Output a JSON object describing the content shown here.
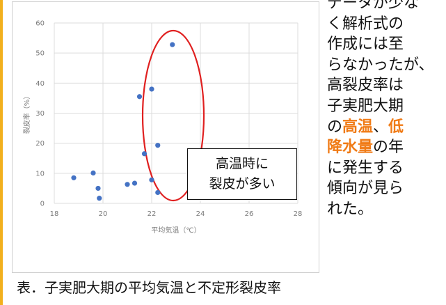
{
  "chart_data": {
    "type": "scatter",
    "xlabel": "平均気温（℃）",
    "ylabel": "裂皮率（%）",
    "xlim": [
      18,
      28
    ],
    "ylim": [
      0,
      60
    ],
    "xticks": [
      18,
      20,
      22,
      24,
      26,
      28
    ],
    "yticks": [
      0,
      10,
      20,
      30,
      40,
      50,
      60
    ],
    "grid": "both",
    "marker_color": "#4472c4",
    "points": [
      {
        "x": 18.8,
        "y": 8.5
      },
      {
        "x": 19.6,
        "y": 10.1
      },
      {
        "x": 19.8,
        "y": 5.0
      },
      {
        "x": 19.85,
        "y": 1.7
      },
      {
        "x": 21.0,
        "y": 6.3
      },
      {
        "x": 21.3,
        "y": 6.7
      },
      {
        "x": 21.5,
        "y": 35.5
      },
      {
        "x": 21.7,
        "y": 16.5
      },
      {
        "x": 22.0,
        "y": 38.0
      },
      {
        "x": 22.0,
        "y": 7.8
      },
      {
        "x": 22.25,
        "y": 19.3
      },
      {
        "x": 22.25,
        "y": 3.6
      },
      {
        "x": 22.85,
        "y": 52.8
      }
    ],
    "highlight_color": "#e02020"
  },
  "callout": {
    "line1": "高温時に",
    "line2": "裂皮が多い"
  },
  "side_text": {
    "line1": "データが少な",
    "line2": "く解析式の",
    "line3": "作成には至",
    "line4": "らなかったが、",
    "line5": "高裂皮率は",
    "line6": "子実肥大期",
    "line7_a": "の",
    "line7_b": "高温",
    "line7_c": "、",
    "line7_d": "低",
    "line8_a": "降水量",
    "line8_b": "の年",
    "line9": "に発生する",
    "line10": "傾向が見ら",
    "line11": "れた。"
  },
  "caption": "表．子実肥大期の平均気温と不定形裂皮率",
  "colors": {
    "accent_bar": "#f2b01e",
    "highlight_text": "#f07b16"
  }
}
